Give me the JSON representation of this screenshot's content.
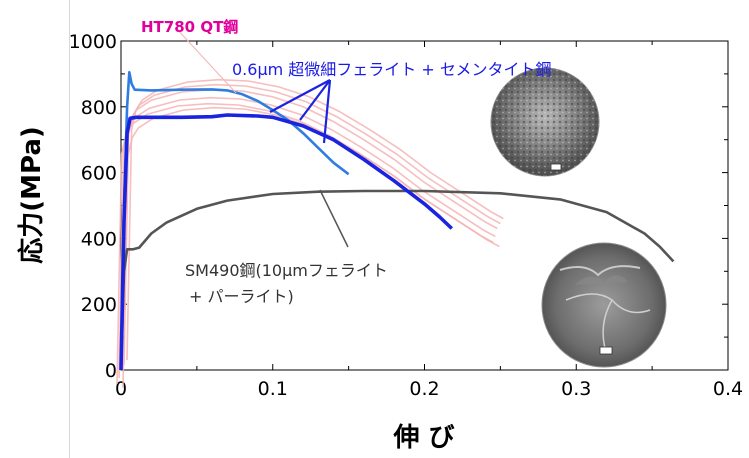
{
  "chart_data": {
    "type": "line",
    "title": "",
    "xlabel": "伸 び",
    "ylabel": "応力(MPa)",
    "xlim": [
      0,
      0.4
    ],
    "ylim": [
      0,
      1000
    ],
    "x_ticks": [
      "0",
      "0.1",
      "0.2",
      "0.3",
      "0.4"
    ],
    "y_ticks": [
      "0",
      "200",
      "400",
      "600",
      "800",
      "1000"
    ],
    "grid": false,
    "colors": {
      "ht780": "#f4b3b3",
      "fine_upper": "#2f7de0",
      "fine_lower": "#1a24e0",
      "sm490": "#555555",
      "ht780_label": "#e0009a",
      "fine_label": "#1a1ae6"
    },
    "annotations": {
      "ht780": "HT780 QT鋼",
      "fine": "0.6μm 超微細フェライト + セメンタイト鋼",
      "sm490_line1": "SM490鋼(10μmフェライト",
      "sm490_line2": "+ パーライト)"
    },
    "series": [
      {
        "key": "ht780",
        "points": [
          [
            0,
            0
          ],
          [
            0.003,
            700
          ],
          [
            0.006,
            760
          ],
          [
            0.01,
            790
          ],
          [
            0.02,
            820
          ],
          [
            0.04,
            845
          ],
          [
            0.06,
            852
          ],
          [
            0.08,
            848
          ],
          [
            0.1,
            830
          ],
          [
            0.12,
            800
          ],
          [
            0.14,
            755
          ],
          [
            0.16,
            700
          ],
          [
            0.18,
            640
          ],
          [
            0.2,
            570
          ],
          [
            0.22,
            510
          ],
          [
            0.24,
            450
          ],
          [
            0.248,
            430
          ]
        ]
      },
      {
        "key": "fine_upper",
        "points": [
          [
            0,
            0
          ],
          [
            0.002,
            500
          ],
          [
            0.004,
            800
          ],
          [
            0.0055,
            905
          ],
          [
            0.007,
            870
          ],
          [
            0.009,
            852
          ],
          [
            0.02,
            850
          ],
          [
            0.04,
            852
          ],
          [
            0.06,
            853
          ],
          [
            0.07,
            850
          ],
          [
            0.08,
            838
          ],
          [
            0.09,
            818
          ],
          [
            0.1,
            790
          ],
          [
            0.11,
            760
          ],
          [
            0.12,
            720
          ],
          [
            0.13,
            675
          ],
          [
            0.14,
            630
          ],
          [
            0.15,
            595
          ]
        ]
      },
      {
        "key": "fine_lower",
        "points": [
          [
            0,
            0
          ],
          [
            0.002,
            450
          ],
          [
            0.004,
            720
          ],
          [
            0.006,
            765
          ],
          [
            0.01,
            768
          ],
          [
            0.04,
            768
          ],
          [
            0.06,
            770
          ],
          [
            0.07,
            775
          ],
          [
            0.09,
            772
          ],
          [
            0.1,
            768
          ],
          [
            0.12,
            742
          ],
          [
            0.14,
            700
          ],
          [
            0.16,
            640
          ],
          [
            0.18,
            575
          ],
          [
            0.2,
            505
          ],
          [
            0.21,
            465
          ],
          [
            0.218,
            430
          ]
        ]
      },
      {
        "key": "sm490",
        "points": [
          [
            0,
            0
          ],
          [
            0.002,
            300
          ],
          [
            0.004,
            367
          ],
          [
            0.008,
            367
          ],
          [
            0.012,
            372
          ],
          [
            0.02,
            415
          ],
          [
            0.03,
            448
          ],
          [
            0.05,
            490
          ],
          [
            0.07,
            515
          ],
          [
            0.1,
            535
          ],
          [
            0.13,
            542
          ],
          [
            0.16,
            544
          ],
          [
            0.2,
            544
          ],
          [
            0.25,
            537
          ],
          [
            0.29,
            518
          ],
          [
            0.32,
            480
          ],
          [
            0.345,
            415
          ],
          [
            0.355,
            375
          ],
          [
            0.364,
            330
          ]
        ]
      }
    ]
  }
}
